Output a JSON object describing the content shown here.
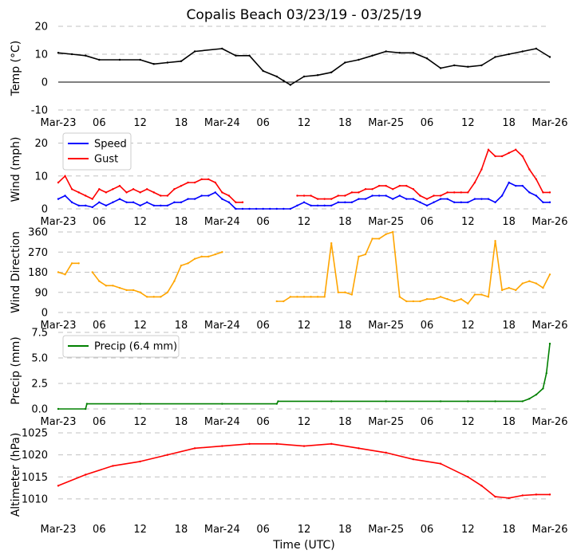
{
  "title": "Copalis Beach 03/23/19 - 03/25/19",
  "xlabel": "Time (UTC)",
  "x_tick_labels": [
    "Mar-23",
    "06",
    "12",
    "18",
    "Mar-24",
    "06",
    "12",
    "18",
    "Mar-25",
    "06",
    "12",
    "18",
    "Mar-26"
  ],
  "colors": {
    "temp": "#000000",
    "speed": "#0000ff",
    "gust": "#ff0000",
    "direction": "#ffa500",
    "precip": "#008000",
    "pressure": "#ff0000",
    "grid": "#c0c0c0"
  },
  "chart_data": [
    {
      "type": "line",
      "name": "temperature",
      "ylabel": "Temp (°C)",
      "ylim": [
        -10,
        20
      ],
      "yticks": [
        -10,
        0,
        10,
        20
      ],
      "x_hours": [
        0,
        2,
        4,
        6,
        9,
        12,
        14,
        16,
        18,
        20,
        24,
        26,
        28,
        30,
        32,
        33,
        34,
        36,
        38,
        40,
        42,
        44,
        46,
        48,
        50,
        52,
        54,
        56,
        58,
        60,
        62,
        64,
        66,
        68,
        70,
        72
      ],
      "series": [
        {
          "name": "Temp",
          "values": [
            10.5,
            10,
            9.5,
            8,
            8,
            8,
            6.5,
            7,
            7.5,
            11,
            12,
            9.5,
            9.5,
            4,
            2,
            0.5,
            -1,
            2,
            2.5,
            3.5,
            7,
            8,
            9.5,
            11,
            10.5,
            10.5,
            8.5,
            5,
            6,
            5.5,
            6,
            9,
            10,
            11,
            12,
            9
          ]
        }
      ]
    },
    {
      "type": "line",
      "name": "wind",
      "ylabel": "Wind (mph)",
      "ylim": [
        0,
        24
      ],
      "yticks": [
        0,
        10,
        20
      ],
      "legend": [
        "Speed",
        "Gust"
      ],
      "x_hours": [
        0,
        1,
        2,
        3,
        4,
        5,
        6,
        7,
        8,
        9,
        10,
        11,
        12,
        13,
        14,
        15,
        16,
        17,
        18,
        19,
        20,
        21,
        22,
        23,
        24,
        25,
        26,
        27,
        28,
        29,
        30,
        31,
        32,
        33,
        34,
        35,
        36,
        37,
        38,
        39,
        40,
        41,
        42,
        43,
        44,
        45,
        46,
        47,
        48,
        49,
        50,
        51,
        52,
        53,
        54,
        55,
        56,
        57,
        58,
        59,
        60,
        61,
        62,
        63,
        64,
        65,
        66,
        67,
        68,
        69,
        70,
        71,
        72
      ],
      "series": [
        {
          "name": "Speed",
          "values": [
            3,
            4,
            2,
            1,
            1,
            0.5,
            2,
            1,
            2,
            3,
            2,
            2,
            1,
            2,
            1,
            1,
            1,
            2,
            2,
            3,
            3,
            4,
            4,
            5,
            3,
            2,
            0,
            0,
            0,
            0,
            0,
            0,
            0,
            0,
            0,
            1,
            2,
            1,
            1,
            1,
            1,
            2,
            2,
            2,
            3,
            3,
            4,
            4,
            4,
            3,
            4,
            3,
            3,
            2,
            1,
            2,
            3,
            3,
            2,
            2,
            2,
            3,
            3,
            3,
            2,
            4,
            8,
            7,
            7,
            5,
            4,
            2,
            2
          ]
        },
        {
          "name": "Gust",
          "values": [
            8,
            10,
            6,
            5,
            4,
            3,
            6,
            5,
            6,
            7,
            5,
            6,
            5,
            6,
            5,
            4,
            4,
            6,
            7,
            8,
            8,
            9,
            9,
            8,
            5,
            4,
            2,
            2,
            null,
            null,
            null,
            null,
            null,
            null,
            null,
            4,
            4,
            4,
            3,
            3,
            3,
            4,
            4,
            5,
            5,
            6,
            6,
            7,
            7,
            6,
            7,
            7,
            6,
            4,
            3,
            4,
            4,
            5,
            5,
            5,
            5,
            8,
            12,
            18,
            16,
            16,
            17,
            18,
            16,
            12,
            9,
            5,
            5
          ]
        }
      ]
    },
    {
      "type": "line",
      "name": "wind_direction",
      "ylabel": "Wind Direction",
      "ylim": [
        0,
        360
      ],
      "yticks": [
        0,
        90,
        180,
        270,
        360
      ],
      "x_hours": [
        0,
        1,
        2,
        3,
        4,
        5,
        6,
        7,
        8,
        9,
        10,
        11,
        12,
        13,
        14,
        15,
        16,
        17,
        18,
        19,
        20,
        21,
        22,
        23,
        24,
        25,
        26,
        27,
        28,
        29,
        30,
        31,
        32,
        33,
        34,
        35,
        36,
        37,
        38,
        39,
        40,
        41,
        42,
        43,
        44,
        45,
        46,
        47,
        48,
        49,
        50,
        51,
        52,
        53,
        54,
        55,
        56,
        57,
        58,
        59,
        60,
        61,
        62,
        63,
        64,
        65,
        66,
        67,
        68,
        69,
        70,
        71,
        72
      ],
      "series": [
        {
          "name": "Direction",
          "values": [
            180,
            170,
            220,
            220,
            null,
            180,
            140,
            120,
            120,
            110,
            100,
            100,
            90,
            70,
            70,
            70,
            90,
            140,
            210,
            220,
            240,
            250,
            250,
            260,
            270,
            null,
            null,
            null,
            null,
            null,
            null,
            null,
            50,
            50,
            70,
            70,
            70,
            70,
            70,
            70,
            310,
            90,
            90,
            80,
            250,
            260,
            330,
            330,
            350,
            360,
            70,
            50,
            50,
            50,
            60,
            60,
            70,
            60,
            50,
            60,
            40,
            80,
            80,
            70,
            320,
            100,
            110,
            100,
            130,
            140,
            130,
            110,
            170
          ]
        }
      ]
    },
    {
      "type": "line",
      "name": "precip",
      "ylabel": "Precip (mm)",
      "ylim": [
        0,
        7.5
      ],
      "yticks": [
        0.0,
        2.5,
        5.0,
        7.5
      ],
      "ytick_labels": [
        "0.0",
        "2.5",
        "5.0",
        "7.5"
      ],
      "legend": [
        "Precip (6.4 mm)"
      ],
      "x_hours": [
        0,
        4,
        4.2,
        12,
        24,
        32,
        32.2,
        40,
        48,
        56,
        60,
        64,
        68,
        69,
        70,
        71,
        71.5,
        72
      ],
      "series": [
        {
          "name": "Precip",
          "values": [
            0,
            0,
            0.5,
            0.5,
            0.5,
            0.5,
            0.75,
            0.75,
            0.75,
            0.75,
            0.75,
            0.75,
            0.75,
            1.0,
            1.4,
            2.0,
            3.5,
            6.4
          ]
        }
      ]
    },
    {
      "type": "line",
      "name": "altimeter",
      "ylabel": "Altimeter (hPa)",
      "ylim": [
        1006,
        1025
      ],
      "yticks": [
        1010,
        1015,
        1020,
        1025
      ],
      "x_hours": [
        0,
        4,
        8,
        12,
        16,
        20,
        24,
        28,
        32,
        36,
        40,
        44,
        48,
        52,
        56,
        60,
        62,
        64,
        66,
        68,
        70,
        72
      ],
      "series": [
        {
          "name": "Altimeter",
          "values": [
            1013,
            1015.5,
            1017.5,
            1018.5,
            1020,
            1021.5,
            1022,
            1022.5,
            1022.5,
            1022,
            1022.5,
            1021.5,
            1020.5,
            1019,
            1018,
            1015,
            1013,
            1010.5,
            1010.2,
            1010.8,
            1011,
            1011
          ]
        }
      ]
    }
  ]
}
